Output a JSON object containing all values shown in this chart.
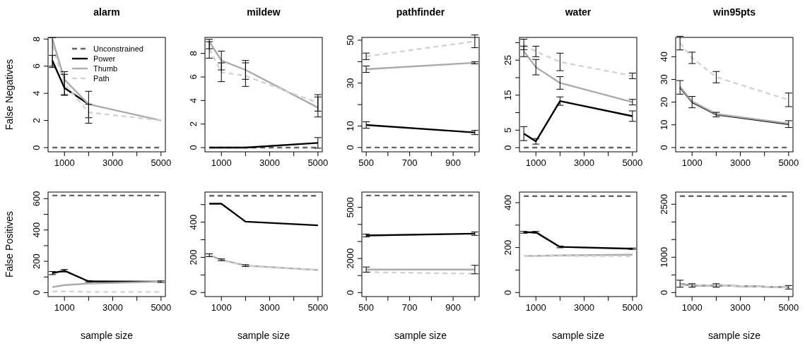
{
  "chart_data": [
    {
      "type": "line",
      "title": "alarm",
      "ylabel": "False Negatives",
      "x": [
        500,
        1000,
        2000,
        5000
      ],
      "xlim": [
        320,
        5180
      ],
      "xticks": [
        1000,
        {
          "value": 2000,
          "label": null
        },
        3000,
        {
          "value": 4000,
          "label": null
        },
        5000
      ],
      "ylim": [
        -0.31,
        8.12
      ],
      "yticks": [
        0,
        2,
        4,
        6,
        8
      ],
      "legend": "top right",
      "grid": false,
      "series": [
        {
          "name": "Unconstrained",
          "color": "#666666",
          "line_style": "dashed",
          "values": [
            0,
            0,
            0,
            0
          ]
        },
        {
          "name": "Power",
          "color": "#000000",
          "line_style": "solid",
          "values": [
            6.4,
            4.4,
            3.2,
            null
          ],
          "errors": [
            [
              5.9,
              6.8
            ],
            [
              3.85,
              5.4
            ],
            [
              2.2,
              4.15
            ],
            null
          ]
        },
        {
          "name": "Thumb",
          "color": "#aaaaaa",
          "line_style": "solid",
          "values": [
            8.0,
            5.0,
            3.2,
            2.0
          ],
          "errors": [
            [
              6.0,
              8.1
            ],
            [
              3.9,
              5.6
            ],
            [
              1.8,
              3.2
            ],
            null
          ]
        },
        {
          "name": "Path",
          "color": "#d3d3d3",
          "line_style": "dashed",
          "values": [
            7.5,
            4.7,
            2.6,
            2.0
          ]
        }
      ]
    },
    {
      "type": "line",
      "title": "mildew",
      "x": [
        500,
        1000,
        2000,
        5000
      ],
      "xlim": [
        320,
        5180
      ],
      "xticks": [
        1000,
        {
          "value": 2000,
          "label": null
        },
        3000,
        {
          "value": 4000,
          "label": null
        },
        5000
      ],
      "ylim": [
        -0.36,
        9.36
      ],
      "yticks": [
        0,
        2,
        4,
        6,
        8
      ],
      "grid": false,
      "series": [
        {
          "color": "#666666",
          "line_style": "dashed",
          "values": [
            0,
            0,
            0,
            0
          ]
        },
        {
          "color": "#000000",
          "line_style": "solid",
          "values": [
            0,
            0,
            0,
            0.4
          ],
          "errors": [
            null,
            null,
            null,
            [
              -0.05,
              0.85
            ]
          ]
        },
        {
          "color": "#aaaaaa",
          "line_style": "solid",
          "values": [
            9.0,
            7.4,
            6.6,
            3.4
          ],
          "errors": [
            [
              8.4,
              9.2
            ],
            [
              6.6,
              8.2
            ],
            [
              5.8,
              7.4
            ],
            [
              2.6,
              4.3
            ]
          ]
        },
        {
          "color": "#d3d3d3",
          "line_style": "dashed",
          "values": [
            8.4,
            6.4,
            6.1,
            3.8
          ],
          "errors": [
            [
              7.6,
              9.0
            ],
            [
              5.6,
              7.2
            ],
            [
              5.2,
              7.2
            ],
            [
              3.1,
              4.5
            ]
          ]
        }
      ]
    },
    {
      "type": "line",
      "title": "pathfinder",
      "x": [
        500,
        1000
      ],
      "xlim": [
        480,
        1020
      ],
      "xticks": [
        500,
        {
          "value": 600,
          "label": null
        },
        700,
        {
          "value": 800,
          "label": null
        },
        900,
        {
          "value": 1000,
          "label": null
        }
      ],
      "ylim": [
        -2,
        51.3
      ],
      "yticks": [
        0,
        10,
        {
          "value": 20,
          "label": null
        },
        30,
        {
          "value": 40,
          "label": null
        },
        50
      ],
      "grid": false,
      "series": [
        {
          "color": "#666666",
          "line_style": "dashed",
          "values": [
            0,
            0
          ]
        },
        {
          "color": "#000000",
          "line_style": "solid",
          "values": [
            10.5,
            7.0
          ],
          "errors": [
            1.5,
            1
          ]
        },
        {
          "color": "#aaaaaa",
          "line_style": "solid",
          "values": [
            36.5,
            39.5
          ],
          "errors": [
            1.5,
            0.5
          ]
        },
        {
          "color": "#d3d3d3",
          "line_style": "dashed",
          "values": [
            42.5,
            49.5
          ],
          "errors": [
            1.5,
            3
          ]
        }
      ]
    },
    {
      "type": "line",
      "title": "water",
      "x": [
        500,
        1000,
        2000,
        5000
      ],
      "xlim": [
        320,
        5180
      ],
      "xticks": [
        1000,
        {
          "value": 2000,
          "label": null
        },
        3000,
        {
          "value": 4000,
          "label": null
        },
        5000
      ],
      "ylim": [
        -1.2,
        31.5
      ],
      "yticks": [
        0,
        5,
        {
          "value": 10,
          "label": null
        },
        15,
        {
          "value": 20,
          "label": null
        },
        25,
        {
          "value": 30,
          "label": null
        }
      ],
      "grid": false,
      "series": [
        {
          "color": "#666666",
          "line_style": "dashed",
          "values": [
            0,
            0,
            0,
            0
          ]
        },
        {
          "color": "#000000",
          "line_style": "solid",
          "values": [
            4.0,
            1.8,
            13.3,
            9.0
          ],
          "errors": [
            2,
            0.8,
            1.2,
            1.5
          ]
        },
        {
          "color": "#aaaaaa",
          "line_style": "solid",
          "values": [
            27.5,
            23.0,
            18.5,
            13.0
          ],
          "errors": [
            1.5,
            2.2,
            1.8,
            0.8
          ]
        },
        {
          "color": "#d3d3d3",
          "line_style": "dashed",
          "values": [
            29.5,
            27.5,
            24.5,
            20.5
          ],
          "errors": [
            1.5,
            1.5,
            2.5,
            0.8
          ]
        }
      ]
    },
    {
      "type": "line",
      "title": "win95pts",
      "x": [
        500,
        1000,
        2000,
        5000
      ],
      "xlim": [
        320,
        5180
      ],
      "xticks": [
        1000,
        {
          "value": 2000,
          "label": null
        },
        3000,
        {
          "value": 4000,
          "label": null
        },
        5000
      ],
      "ylim": [
        -1.9,
        48.5
      ],
      "yticks": [
        0,
        10,
        20,
        30,
        40
      ],
      "grid": false,
      "series": [
        {
          "color": "#666666",
          "line_style": "dashed",
          "values": [
            0,
            0,
            0,
            0
          ]
        },
        {
          "color": "#000000",
          "line_style": "solid",
          "values": [
            26.5,
            20.0,
            14.5,
            10.3
          ],
          "errors": [
            3,
            2.5,
            1,
            1.5
          ]
        },
        {
          "color": "#aaaaaa",
          "line_style": "solid",
          "values": [
            26.8,
            20.3,
            14.8,
            10.6
          ]
        },
        {
          "color": "#d3d3d3",
          "line_style": "dashed",
          "values": [
            46,
            39.5,
            31,
            21
          ],
          "errors": [
            3,
            2.5,
            2.5,
            3
          ]
        }
      ]
    },
    {
      "type": "line",
      "ylabel": "False Positives",
      "xlabel": "sample size",
      "x": [
        500,
        1000,
        2000,
        5000
      ],
      "xlim": [
        320,
        5180
      ],
      "xticks": [
        1000,
        {
          "value": 2000,
          "label": null
        },
        3000,
        {
          "value": 4000,
          "label": null
        },
        5000
      ],
      "ylim": [
        -25,
        642
      ],
      "yticks": [
        0,
        {
          "value": 100,
          "label": null
        },
        200,
        {
          "value": 300,
          "label": null
        },
        400,
        {
          "value": 500,
          "label": null
        },
        600
      ],
      "grid": false,
      "series": [
        {
          "color": "#666666",
          "line_style": "dashed",
          "values": [
            620,
            620,
            620,
            620
          ]
        },
        {
          "color": "#000000",
          "line_style": "solid",
          "values": [
            125,
            140,
            72,
            70
          ],
          "errors": [
            10,
            8,
            5,
            5
          ]
        },
        {
          "color": "#aaaaaa",
          "line_style": "solid",
          "values": [
            35,
            48,
            58,
            70
          ]
        },
        {
          "color": "#d3d3d3",
          "line_style": "dashed",
          "values": [
            8,
            8,
            5,
            5
          ]
        }
      ]
    },
    {
      "type": "line",
      "xlabel": "sample size",
      "x": [
        500,
        1000,
        2000,
        5000
      ],
      "xlim": [
        320,
        5180
      ],
      "xticks": [
        1000,
        {
          "value": 2000,
          "label": null
        },
        3000,
        {
          "value": 4000,
          "label": null
        },
        5000
      ],
      "ylim": [
        -23,
        571
      ],
      "yticks": [
        0,
        {
          "value": 100,
          "label": null
        },
        200,
        {
          "value": 300,
          "label": null
        },
        400,
        {
          "value": 500,
          "label": null
        }
      ],
      "grid": false,
      "series": [
        {
          "color": "#666666",
          "line_style": "dashed",
          "values": [
            550,
            550,
            550,
            550
          ]
        },
        {
          "color": "#000000",
          "line_style": "solid",
          "values": [
            505,
            505,
            403,
            382
          ]
        },
        {
          "color": "#aaaaaa",
          "line_style": "solid",
          "values": [
            212,
            186,
            153,
            128
          ],
          "errors": [
            8,
            5,
            5,
            null
          ]
        },
        {
          "color": "#d3d3d3",
          "line_style": "dashed",
          "values": [
            210,
            184,
            151,
            127
          ]
        }
      ]
    },
    {
      "type": "line",
      "xlabel": "sample size",
      "x": [
        500,
        1000
      ],
      "xlim": [
        480,
        1020
      ],
      "xticks": [
        500,
        {
          "value": 600,
          "label": null
        },
        700,
        {
          "value": 800,
          "label": null
        },
        900,
        {
          "value": 1000,
          "label": null
        }
      ],
      "ylim": [
        -234,
        5900
      ],
      "yticks": [
        0,
        {
          "value": 1000,
          "label": null
        },
        2000,
        {
          "value": 3000,
          "label": null
        },
        {
          "value": 4000,
          "label": null
        },
        5000
      ],
      "grid": false,
      "series": [
        {
          "color": "#666666",
          "line_style": "dashed",
          "values": [
            5700,
            5700
          ]
        },
        {
          "color": "#000000",
          "line_style": "solid",
          "values": [
            3350,
            3460
          ],
          "errors": [
            80,
            100
          ]
        },
        {
          "color": "#aaaaaa",
          "line_style": "solid",
          "values": [
            1350,
            1350
          ],
          "errors": [
            150,
            250
          ]
        },
        {
          "color": "#d3d3d3",
          "line_style": "dashed",
          "values": [
            1200,
            1110
          ]
        }
      ]
    },
    {
      "type": "line",
      "xlabel": "sample size",
      "x": [
        500,
        1000,
        2000,
        5000
      ],
      "xlim": [
        320,
        5180
      ],
      "xticks": [
        1000,
        {
          "value": 2000,
          "label": null
        },
        3000,
        {
          "value": 4000,
          "label": null
        },
        5000
      ],
      "ylim": [
        -18,
        447
      ],
      "yticks": [
        0,
        {
          "value": 100,
          "label": null
        },
        200,
        {
          "value": 300,
          "label": null
        },
        400
      ],
      "grid": false,
      "series": [
        {
          "color": "#666666",
          "line_style": "dashed",
          "values": [
            429,
            429,
            429,
            429
          ]
        },
        {
          "color": "#000000",
          "line_style": "solid",
          "values": [
            268,
            268,
            203,
            195
          ],
          "errors": [
            4,
            4,
            4,
            3
          ]
        },
        {
          "color": "#aaaaaa",
          "line_style": "solid",
          "values": [
            163,
            163,
            165,
            168
          ]
        },
        {
          "color": "#d3d3d3",
          "line_style": "dashed",
          "values": [
            163,
            163,
            163,
            162
          ]
        }
      ]
    },
    {
      "type": "line",
      "xlabel": "sample size",
      "x": [
        500,
        1000,
        2000,
        5000
      ],
      "xlim": [
        320,
        5180
      ],
      "xticks": [
        1000,
        {
          "value": 2000,
          "label": null
        },
        3000,
        {
          "value": 4000,
          "label": null
        },
        5000
      ],
      "ylim": [
        -113,
        2845
      ],
      "yticks": [
        0,
        {
          "value": 500,
          "label": null
        },
        1000,
        {
          "value": 1500,
          "label": null
        },
        {
          "value": 2000,
          "label": null
        },
        2500
      ],
      "grid": false,
      "series": [
        {
          "color": "#666666",
          "line_style": "dashed",
          "values": [
            2730,
            2730,
            2730,
            2730
          ]
        },
        {
          "color": "#000000",
          "line_style": "solid",
          "values": [
            250,
            200,
            200,
            150
          ],
          "errors": [
            100,
            50,
            50,
            50
          ]
        },
        {
          "color": "#aaaaaa",
          "line_style": "solid",
          "values": [
            250,
            200,
            200,
            150
          ]
        },
        {
          "color": "#d3d3d3",
          "line_style": "dashed",
          "values": [
            200,
            200,
            200,
            150
          ]
        }
      ]
    }
  ]
}
